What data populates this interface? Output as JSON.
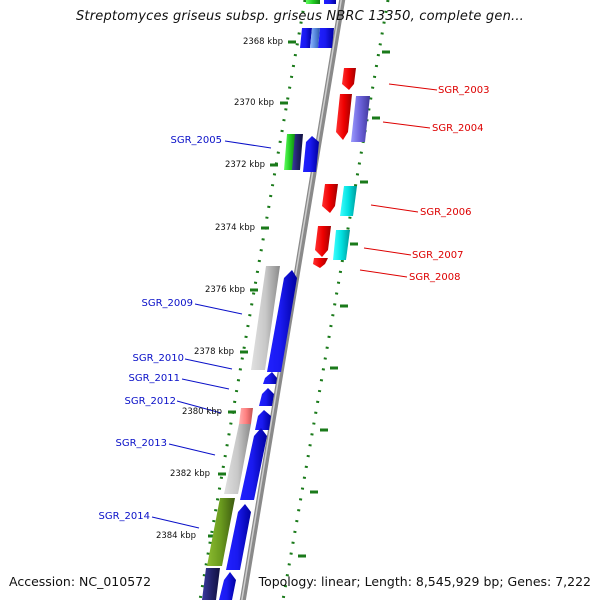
{
  "title": "Streptomyces griseus subsp. griseus NBRC 13350, complete gen...",
  "footer": {
    "accession": "Accession: NC_010572",
    "summary": "Topology: linear; Length: 8,545,929 bp; Genes: 7,222"
  },
  "colors": {
    "forward_label": "#0a10c8",
    "reverse_label": "#dd0000",
    "tick": "#1a7a1a",
    "axis": "#888888"
  },
  "scale_labels": [
    "2368 kbp",
    "2370 kbp",
    "2372 kbp",
    "2374 kbp",
    "2376 kbp",
    "2378 kbp",
    "2380 kbp",
    "2382 kbp",
    "2384 kbp"
  ],
  "forward_genes": [
    "SGR_2005",
    "SGR_2009",
    "SGR_2010",
    "SGR_2011",
    "SGR_2012",
    "SGR_2013",
    "SGR_2014"
  ],
  "reverse_genes": [
    "SGR_2003",
    "SGR_2004",
    "SGR_2006",
    "SGR_2007",
    "SGR_2008"
  ]
}
